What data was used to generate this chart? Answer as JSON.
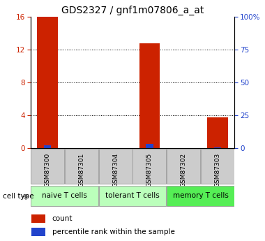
{
  "title": "GDS2327 / gnf1m07806_a_at",
  "samples": [
    "GSM87300",
    "GSM87301",
    "GSM87304",
    "GSM87305",
    "GSM87302",
    "GSM87303"
  ],
  "count_values": [
    16.0,
    0.0,
    0.0,
    12.8,
    0.0,
    3.8
  ],
  "percentile_values": [
    2.0,
    0.0,
    0.0,
    3.3,
    0.0,
    0.7
  ],
  "ylim_left": [
    0,
    16
  ],
  "ylim_right": [
    0,
    100
  ],
  "yticks_left": [
    0,
    4,
    8,
    12,
    16
  ],
  "yticks_right": [
    0,
    25,
    50,
    75,
    100
  ],
  "yticklabels_right": [
    "0",
    "25",
    "50",
    "75",
    "100%"
  ],
  "groups": [
    {
      "label": "naive T cells",
      "start": 0,
      "end": 1,
      "color": "#ccffcc"
    },
    {
      "label": "tolerant T cells",
      "start": 2,
      "end": 3,
      "color": "#ccffcc"
    },
    {
      "label": "memory T cells",
      "start": 4,
      "end": 5,
      "color": "#66ee66"
    }
  ],
  "bar_color_count": "#cc2200",
  "bar_color_percentile": "#2244cc",
  "bar_width": 0.6,
  "sample_box_color": "#cccccc",
  "legend_count_label": "count",
  "legend_percentile_label": "percentile rank within the sample",
  "cell_type_label": "cell type",
  "left_tick_color": "#cc2200",
  "right_tick_color": "#2244cc",
  "title_fontsize": 10,
  "tick_fontsize": 7.5,
  "label_fontsize": 8
}
